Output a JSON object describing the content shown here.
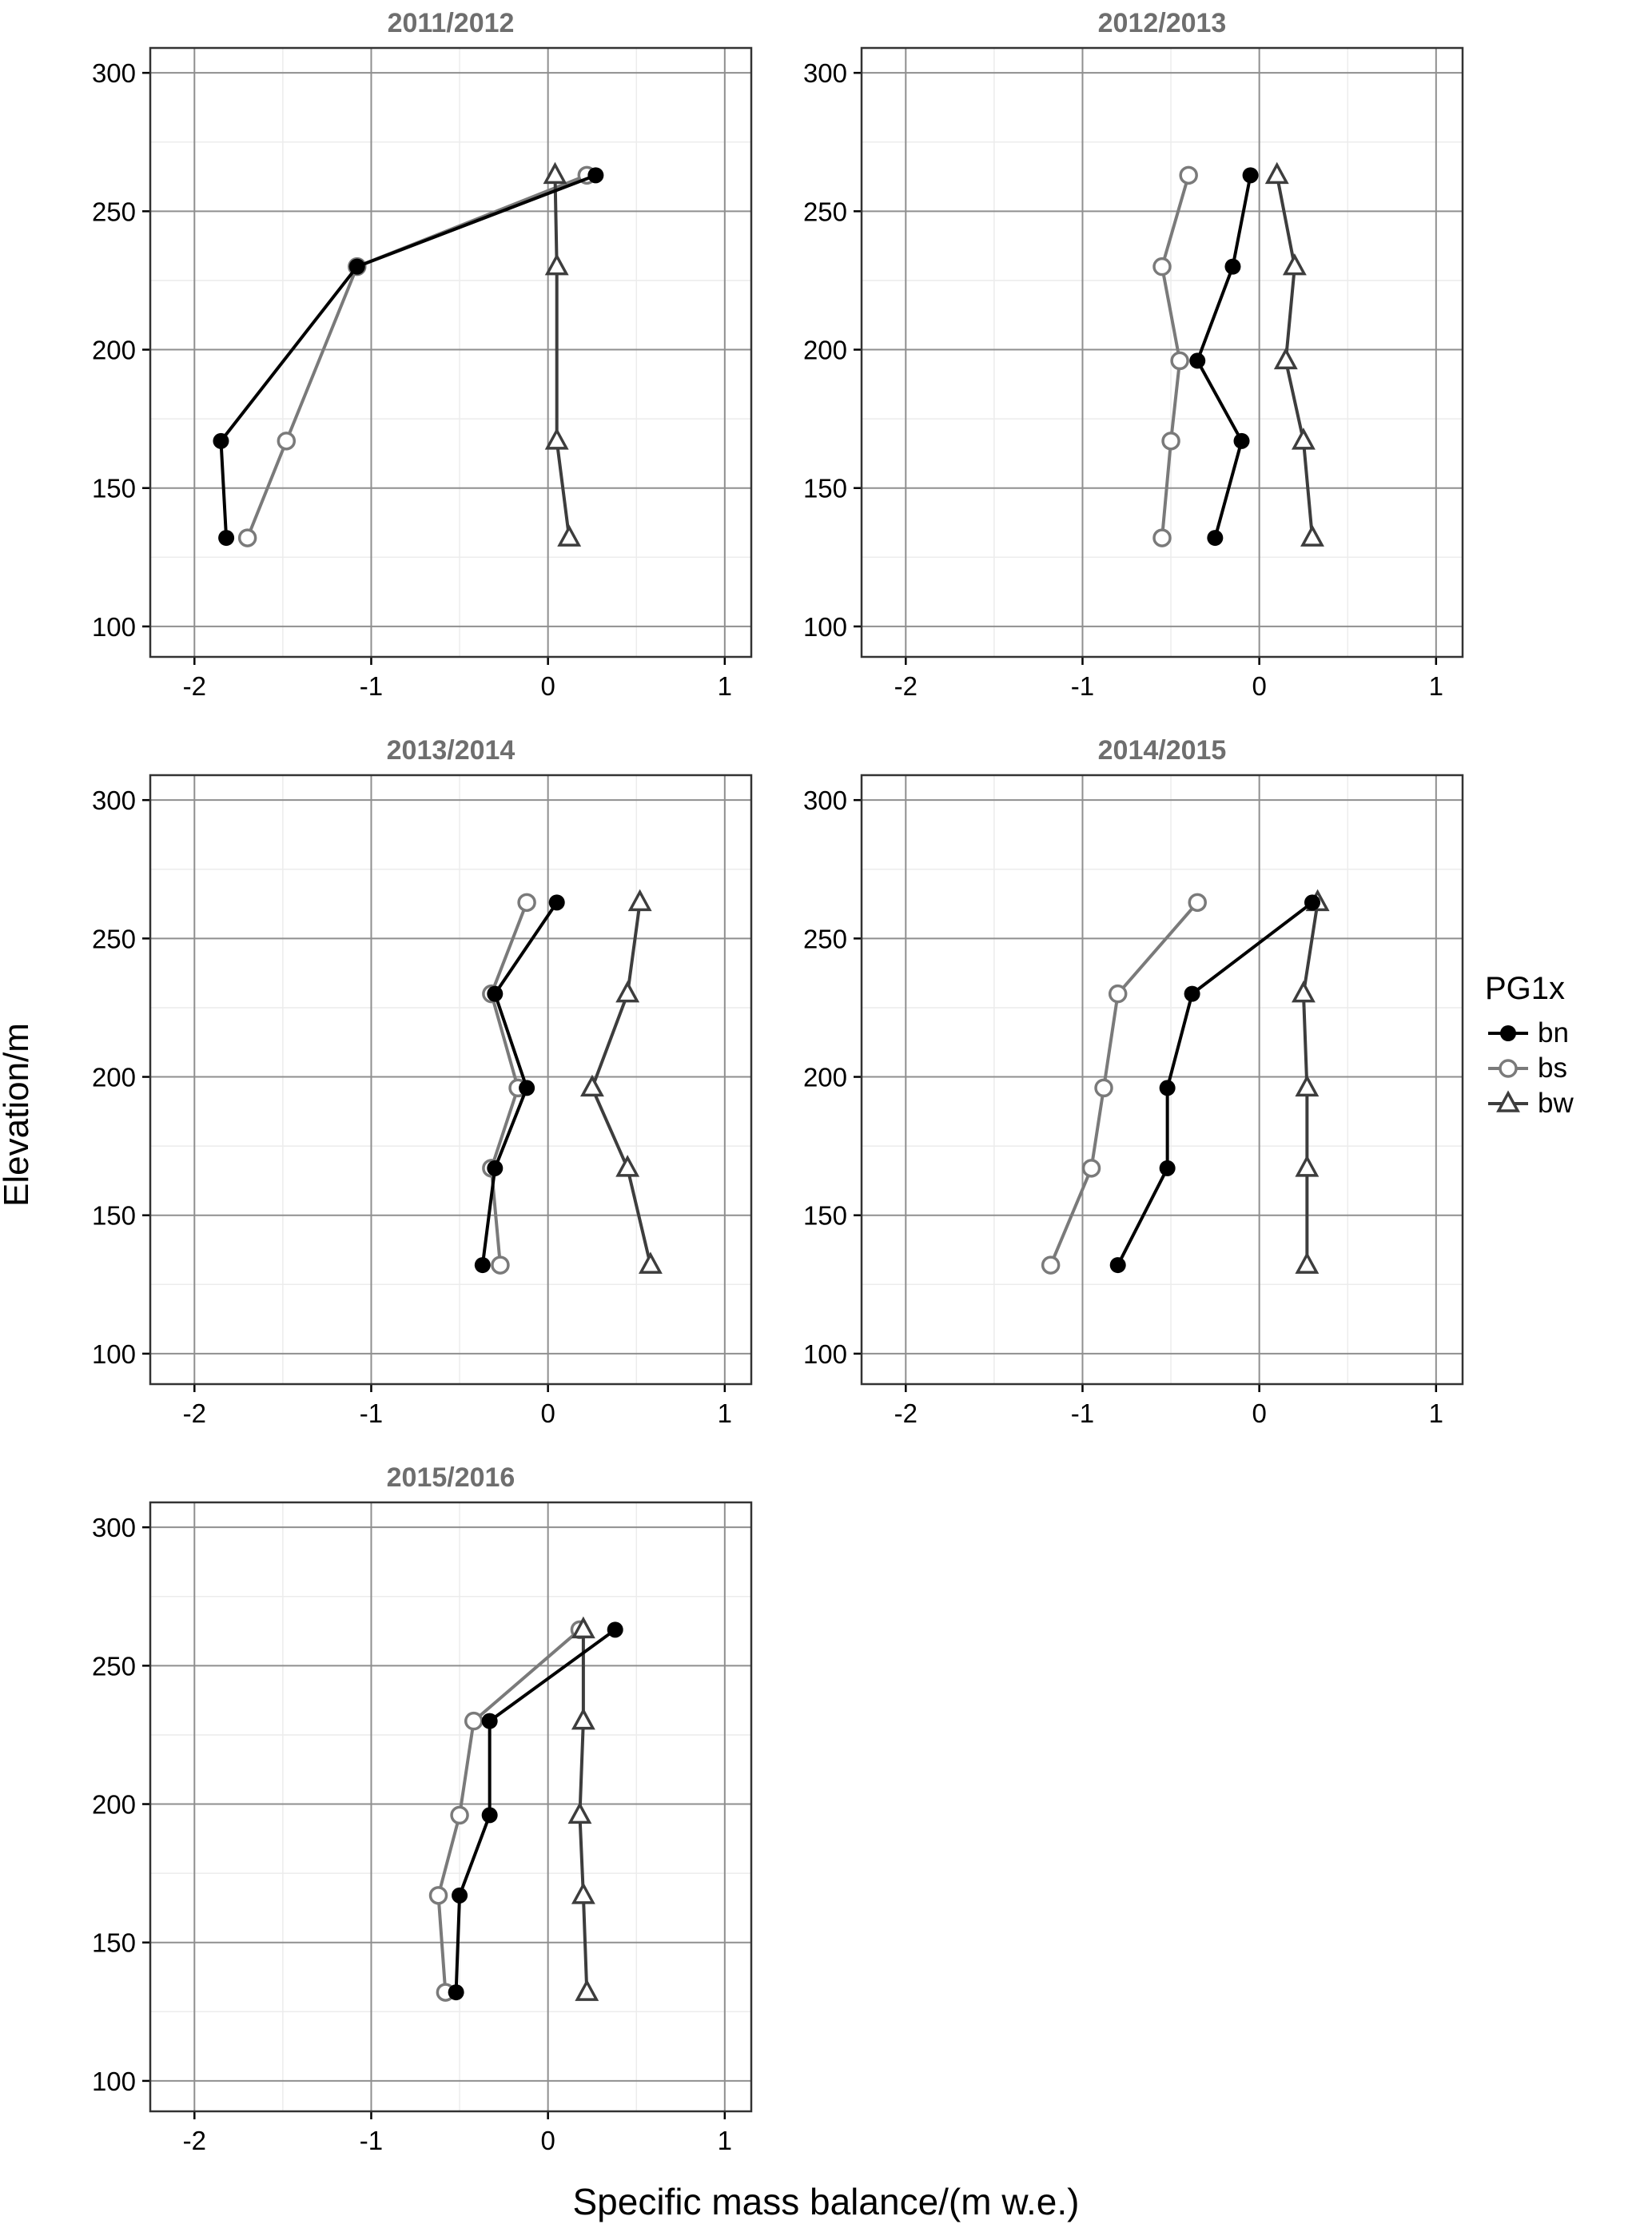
{
  "figure": {
    "ylabel": "Elevation/m",
    "xlabel": "Specific mass balance/(m w.e.)",
    "legend": {
      "title": "PG1x",
      "items": [
        {
          "label": "bn",
          "marker": "filled-circle",
          "color": "#000000"
        },
        {
          "label": "bs",
          "marker": "open-circle",
          "color": "#7a7a7a"
        },
        {
          "label": "bw",
          "marker": "open-triangle",
          "color": "#3d3d3d"
        }
      ]
    },
    "colors": {
      "title": "#6e6e6e",
      "grid_major": "#8f8f8f",
      "grid_minor": "#ececec",
      "panel_border": "#333333",
      "tick_label": "#000000"
    }
  },
  "chart_data": [
    {
      "type": "line",
      "title": "2011/2012",
      "xlabel": "Specific mass balance/(m w.e.)",
      "ylabel": "Elevation/m",
      "xlim": [
        -2.25,
        1.15
      ],
      "ylim": [
        89,
        309
      ],
      "xticks": [
        -2,
        -1,
        0,
        1
      ],
      "yticks": [
        100,
        150,
        200,
        250,
        300
      ],
      "series": [
        {
          "name": "bn",
          "elevation": [
            132,
            167,
            230,
            263
          ],
          "x": [
            -1.82,
            -1.85,
            -1.08,
            0.27
          ]
        },
        {
          "name": "bs",
          "elevation": [
            132,
            167,
            230,
            263
          ],
          "x": [
            -1.7,
            -1.48,
            -1.08,
            0.22
          ]
        },
        {
          "name": "bw",
          "elevation": [
            132,
            167,
            230,
            263
          ],
          "x": [
            0.12,
            0.05,
            0.05,
            0.04
          ]
        }
      ]
    },
    {
      "type": "line",
      "title": "2012/2013",
      "xlabel": "Specific mass balance/(m w.e.)",
      "ylabel": "Elevation/m",
      "xlim": [
        -2.25,
        1.15
      ],
      "ylim": [
        89,
        309
      ],
      "xticks": [
        -2,
        -1,
        0,
        1
      ],
      "yticks": [
        100,
        150,
        200,
        250,
        300
      ],
      "series": [
        {
          "name": "bn",
          "elevation": [
            132,
            167,
            196,
            230,
            263
          ],
          "x": [
            -0.25,
            -0.1,
            -0.35,
            -0.15,
            -0.05
          ]
        },
        {
          "name": "bs",
          "elevation": [
            132,
            167,
            196,
            230,
            263
          ],
          "x": [
            -0.55,
            -0.5,
            -0.45,
            -0.55,
            -0.4
          ]
        },
        {
          "name": "bw",
          "elevation": [
            132,
            167,
            196,
            230,
            263
          ],
          "x": [
            0.3,
            0.25,
            0.15,
            0.2,
            0.1
          ]
        }
      ]
    },
    {
      "type": "line",
      "title": "2013/2014",
      "xlabel": "Specific mass balance/(m w.e.)",
      "ylabel": "Elevation/m",
      "xlim": [
        -2.25,
        1.15
      ],
      "ylim": [
        89,
        309
      ],
      "xticks": [
        -2,
        -1,
        0,
        1
      ],
      "yticks": [
        100,
        150,
        200,
        250,
        300
      ],
      "series": [
        {
          "name": "bn",
          "elevation": [
            132,
            167,
            196,
            230,
            263
          ],
          "x": [
            -0.37,
            -0.3,
            -0.12,
            -0.3,
            0.05
          ]
        },
        {
          "name": "bs",
          "elevation": [
            132,
            167,
            196,
            230,
            263
          ],
          "x": [
            -0.27,
            -0.32,
            -0.17,
            -0.32,
            -0.12
          ]
        },
        {
          "name": "bw",
          "elevation": [
            132,
            167,
            196,
            230,
            263
          ],
          "x": [
            0.58,
            0.45,
            0.25,
            0.45,
            0.52
          ]
        }
      ]
    },
    {
      "type": "line",
      "title": "2014/2015",
      "xlabel": "Specific mass balance/(m w.e.)",
      "ylabel": "Elevation/m",
      "xlim": [
        -2.25,
        1.15
      ],
      "ylim": [
        89,
        309
      ],
      "xticks": [
        -2,
        -1,
        0,
        1
      ],
      "yticks": [
        100,
        150,
        200,
        250,
        300
      ],
      "series": [
        {
          "name": "bn",
          "elevation": [
            132,
            167,
            196,
            230,
            263
          ],
          "x": [
            -0.8,
            -0.52,
            -0.52,
            -0.38,
            0.3
          ]
        },
        {
          "name": "bs",
          "elevation": [
            132,
            167,
            196,
            230,
            263
          ],
          "x": [
            -1.18,
            -0.95,
            -0.88,
            -0.8,
            -0.35
          ]
        },
        {
          "name": "bw",
          "elevation": [
            132,
            167,
            196,
            230,
            263
          ],
          "x": [
            0.27,
            0.27,
            0.27,
            0.25,
            0.33
          ]
        }
      ]
    },
    {
      "type": "line",
      "title": "2015/2016",
      "xlabel": "Specific mass balance/(m w.e.)",
      "ylabel": "Elevation/m",
      "xlim": [
        -2.25,
        1.15
      ],
      "ylim": [
        89,
        309
      ],
      "xticks": [
        -2,
        -1,
        0,
        1
      ],
      "yticks": [
        100,
        150,
        200,
        250,
        300
      ],
      "series": [
        {
          "name": "bn",
          "elevation": [
            132,
            167,
            196,
            230,
            263
          ],
          "x": [
            -0.52,
            -0.5,
            -0.33,
            -0.33,
            0.38
          ]
        },
        {
          "name": "bs",
          "elevation": [
            132,
            167,
            196,
            230,
            263
          ],
          "x": [
            -0.58,
            -0.62,
            -0.5,
            -0.42,
            0.18
          ]
        },
        {
          "name": "bw",
          "elevation": [
            132,
            167,
            196,
            230,
            263
          ],
          "x": [
            0.22,
            0.2,
            0.18,
            0.2,
            0.2
          ]
        }
      ]
    }
  ]
}
